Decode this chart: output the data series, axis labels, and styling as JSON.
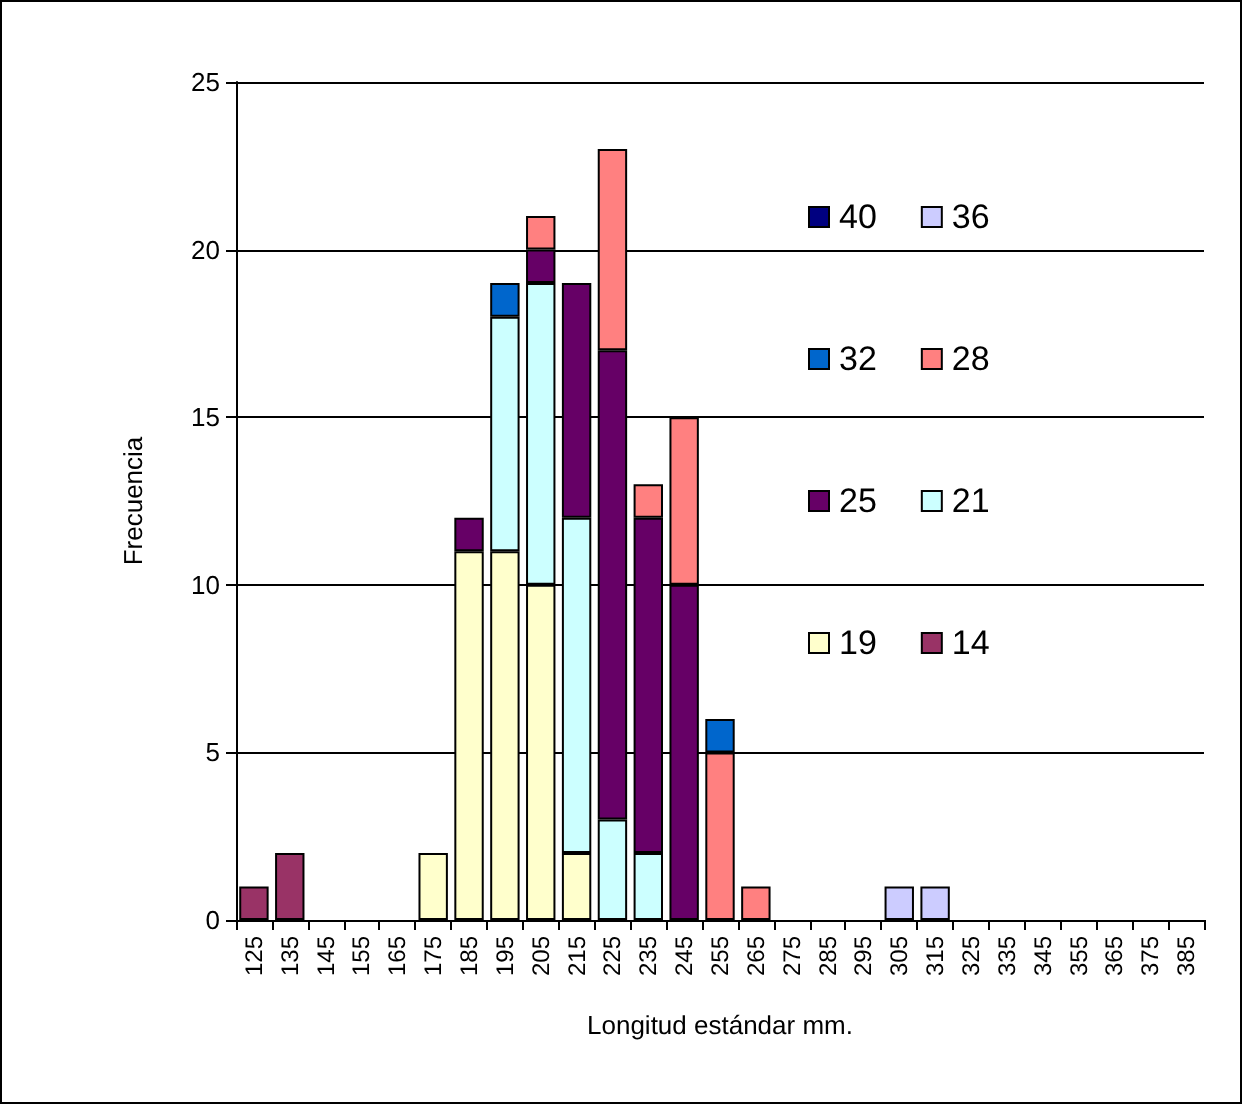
{
  "chart_data": {
    "type": "bar",
    "stacked": true,
    "xlabel": "Longitud estándar mm.",
    "ylabel": "Frecuencia",
    "categories": [
      "125",
      "135",
      "145",
      "155",
      "165",
      "175",
      "185",
      "195",
      "205",
      "215",
      "225",
      "235",
      "245",
      "255",
      "265",
      "275",
      "285",
      "295",
      "305",
      "315",
      "325",
      "335",
      "345",
      "355",
      "365",
      "375",
      "385"
    ],
    "ylim": [
      0,
      25
    ],
    "yticks": [
      0,
      5,
      10,
      15,
      20,
      25
    ],
    "grid": "y",
    "legend": "top right",
    "series": [
      {
        "name": "14",
        "color": "#993366",
        "values": [
          1,
          2,
          null,
          null,
          null,
          null,
          null,
          null,
          null,
          null,
          null,
          null,
          null,
          null,
          null,
          null,
          null,
          null,
          null,
          null,
          null,
          null,
          null,
          null,
          null,
          null,
          null
        ]
      },
      {
        "name": "19",
        "color": "#ffffcc",
        "values": [
          null,
          null,
          null,
          null,
          null,
          2,
          11,
          11,
          10,
          2,
          null,
          null,
          null,
          null,
          null,
          null,
          null,
          null,
          null,
          null,
          null,
          null,
          null,
          null,
          null,
          null,
          null
        ]
      },
      {
        "name": "21",
        "color": "#ccffff",
        "values": [
          null,
          null,
          null,
          null,
          null,
          null,
          null,
          7,
          9,
          10,
          3,
          2,
          null,
          null,
          null,
          null,
          null,
          null,
          null,
          null,
          null,
          null,
          null,
          null,
          null,
          null,
          null
        ]
      },
      {
        "name": "25",
        "color": "#660066",
        "values": [
          null,
          null,
          null,
          null,
          null,
          null,
          1,
          null,
          1,
          7,
          14,
          10,
          10,
          null,
          null,
          null,
          null,
          null,
          null,
          null,
          null,
          null,
          null,
          null,
          null,
          null,
          null
        ]
      },
      {
        "name": "28",
        "color": "#ff8080",
        "values": [
          null,
          null,
          null,
          null,
          null,
          null,
          null,
          null,
          1,
          null,
          6,
          1,
          5,
          5,
          1,
          null,
          null,
          null,
          null,
          null,
          null,
          null,
          null,
          null,
          null,
          null,
          null
        ]
      },
      {
        "name": "32",
        "color": "#0066cc",
        "values": [
          null,
          null,
          null,
          null,
          null,
          null,
          null,
          1,
          null,
          null,
          null,
          null,
          null,
          1,
          null,
          null,
          null,
          null,
          null,
          null,
          null,
          null,
          null,
          null,
          null,
          null,
          null
        ]
      },
      {
        "name": "36",
        "color": "#ccccff",
        "values": [
          null,
          null,
          null,
          null,
          null,
          null,
          null,
          null,
          null,
          null,
          null,
          null,
          null,
          null,
          null,
          null,
          null,
          null,
          1,
          1,
          null,
          null,
          null,
          null,
          null,
          null,
          null
        ]
      },
      {
        "name": "40",
        "color": "#000080",
        "values": [
          null,
          null,
          null,
          null,
          null,
          null,
          null,
          null,
          null,
          null,
          null,
          null,
          null,
          null,
          null,
          null,
          null,
          null,
          null,
          null,
          null,
          null,
          null,
          null,
          null,
          null,
          null
        ]
      }
    ]
  }
}
